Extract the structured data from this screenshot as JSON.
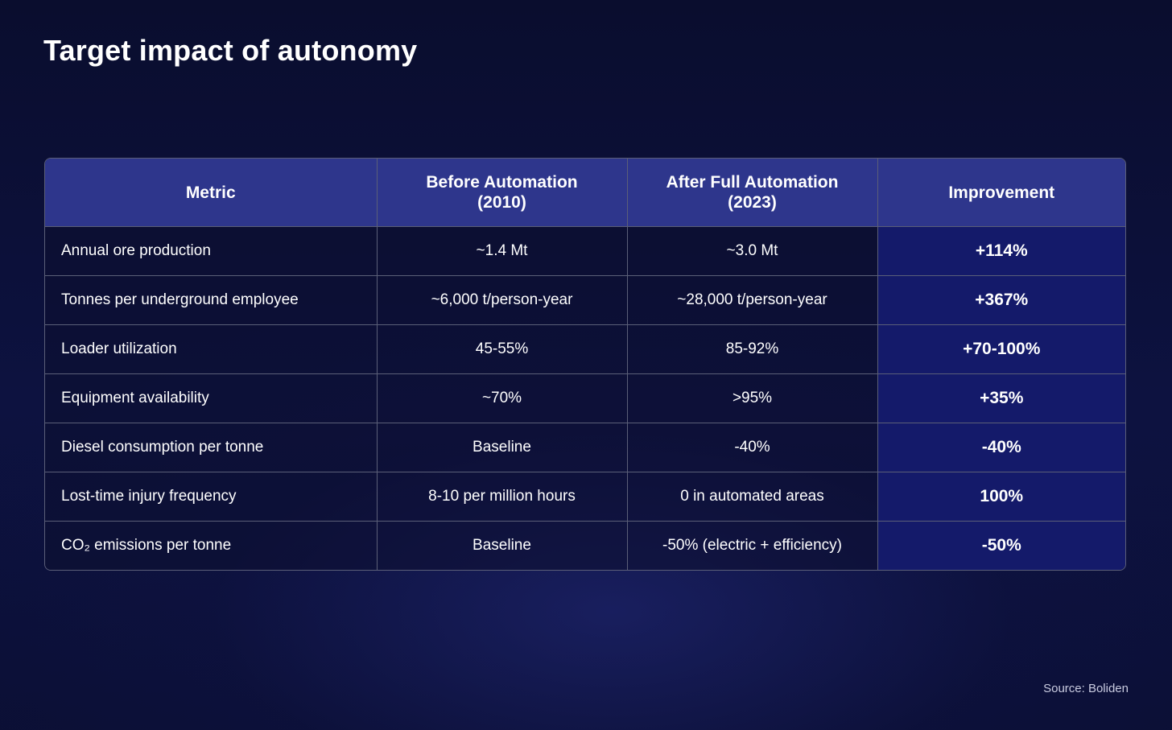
{
  "title": "Target impact of autonomy",
  "source": "Source: Boliden",
  "chart_data": {
    "type": "table",
    "title": "Target impact of autonomy",
    "columns": [
      {
        "lines": [
          "Metric"
        ]
      },
      {
        "lines": [
          "Before Automation",
          "(2010)"
        ]
      },
      {
        "lines": [
          "After Full Automation",
          "(2023)"
        ]
      },
      {
        "lines": [
          "Improvement"
        ]
      }
    ],
    "rows": [
      {
        "metric": "Annual ore production",
        "before": "~1.4 Mt",
        "after": "~3.0 Mt",
        "improvement": "+114%"
      },
      {
        "metric": "Tonnes per underground employee",
        "before": "~6,000 t/person-year",
        "after": "~28,000 t/person-year",
        "improvement": "+367%"
      },
      {
        "metric": "Loader utilization",
        "before": "45-55%",
        "after": "85-92%",
        "improvement": "+70-100%"
      },
      {
        "metric": "Equipment availability",
        "before": "~70%",
        "after": ">95%",
        "improvement": "+35%"
      },
      {
        "metric": "Diesel consumption per tonne",
        "before": "Baseline",
        "after": "-40%",
        "improvement": "-40%"
      },
      {
        "metric": "Lost-time injury frequency",
        "before": "8-10 per million hours",
        "after": "0 in automated areas",
        "improvement": "100%"
      },
      {
        "metric": "CO₂ emissions per tonne",
        "before": "Baseline",
        "after": "-50% (electric + efficiency)",
        "improvement": "-50%"
      }
    ]
  }
}
